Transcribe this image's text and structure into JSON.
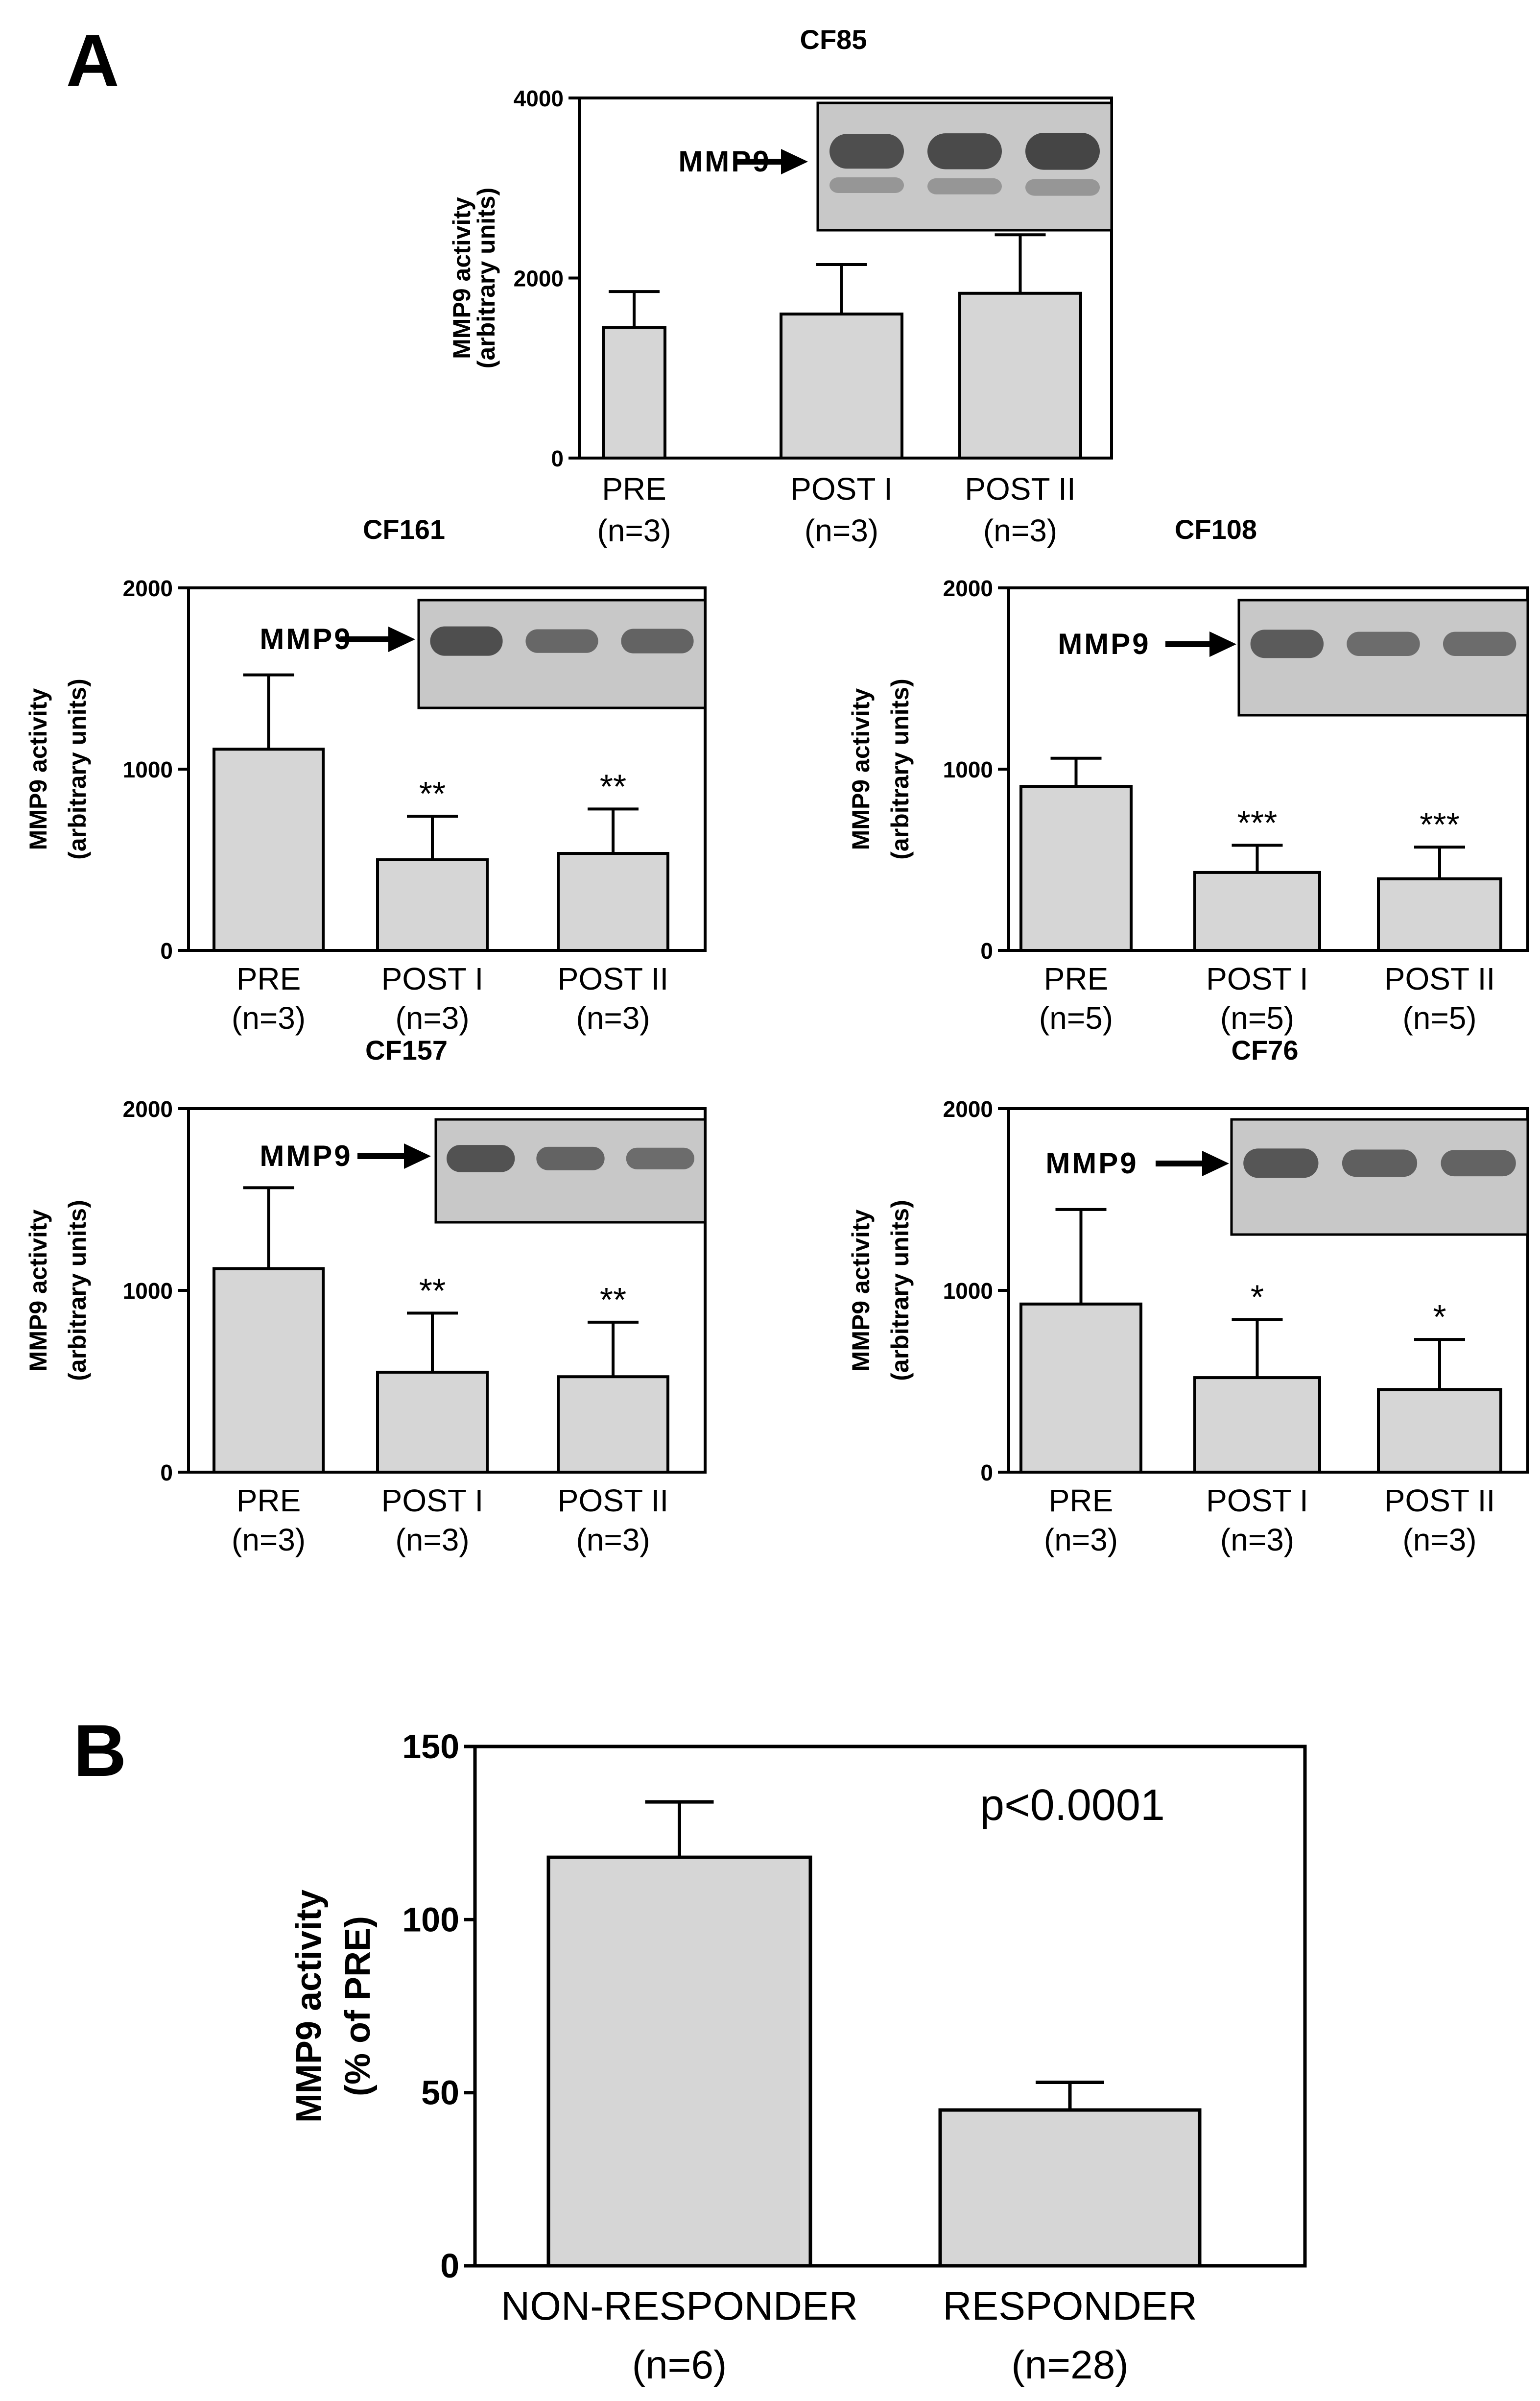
{
  "panels": {
    "a": {
      "letter": "A"
    },
    "b": {
      "letter": "B"
    }
  },
  "colors": {
    "bar_fill": "#d6d6d6",
    "ink": "#000000",
    "gel_background": "#c8c8c8",
    "gel_band": "#3a3a3a"
  },
  "chart_data": [
    {
      "id": "cf85",
      "panel": "A",
      "type": "bar",
      "title": "CF85",
      "ylabel": [
        "MMP9 activity",
        "(arbitrary units)"
      ],
      "ylim": [
        0,
        4000
      ],
      "yticks": [
        0,
        2000,
        4000
      ],
      "categories": [
        "PRE",
        "POST I",
        "POST II"
      ],
      "sample_sizes": [
        "(n=3)",
        "(n=3)",
        "(n=3)"
      ],
      "values": [
        1450,
        1600,
        1830
      ],
      "errors": [
        400,
        550,
        650
      ],
      "significance": [
        "",
        "",
        ""
      ],
      "inset": {
        "label": "MMP9",
        "band_strength": [
          0.85,
          0.9,
          0.95
        ]
      }
    },
    {
      "id": "cf161",
      "panel": "A",
      "type": "bar",
      "title": "CF161",
      "ylabel": [
        "MMP9 activity",
        "(arbitrary units)"
      ],
      "ylim": [
        0,
        2000
      ],
      "yticks": [
        0,
        1000,
        2000
      ],
      "categories": [
        "PRE",
        "POST I",
        "POST II"
      ],
      "sample_sizes": [
        "(n=3)",
        "(n=3)",
        "(n=3)"
      ],
      "values": [
        1110,
        500,
        535
      ],
      "errors": [
        410,
        240,
        245
      ],
      "significance": [
        "",
        "**",
        "**"
      ],
      "inset": {
        "label": "MMP9",
        "band_strength": [
          0.85,
          0.55,
          0.6
        ]
      }
    },
    {
      "id": "cf108",
      "panel": "A",
      "type": "bar",
      "title": "CF108",
      "ylabel": [
        "MMP9 activity",
        "(arbitrary units)"
      ],
      "ylim": [
        0,
        2000
      ],
      "yticks": [
        0,
        1000,
        2000
      ],
      "categories": [
        "PRE",
        "POST I",
        "POST II"
      ],
      "sample_sizes": [
        "(n=5)",
        "(n=5)",
        "(n=5)"
      ],
      "values": [
        905,
        430,
        395
      ],
      "errors": [
        155,
        150,
        175
      ],
      "significance": [
        "",
        "***",
        "***"
      ],
      "inset": {
        "label": "MMP9",
        "band_strength": [
          0.7,
          0.5,
          0.5
        ]
      }
    },
    {
      "id": "cf157",
      "panel": "A",
      "type": "bar",
      "title": "CF157",
      "ylabel": [
        "MMP9 activity",
        "(arbitrary units)"
      ],
      "ylim": [
        0,
        2000
      ],
      "yticks": [
        0,
        1000,
        2000
      ],
      "categories": [
        "PRE",
        "POST I",
        "POST II"
      ],
      "sample_sizes": [
        "(n=3)",
        "(n=3)",
        "(n=3)"
      ],
      "values": [
        1120,
        550,
        525
      ],
      "errors": [
        445,
        325,
        300
      ],
      "significance": [
        "",
        "**",
        "**"
      ],
      "inset": {
        "label": "MMP9",
        "band_strength": [
          0.8,
          0.6,
          0.5
        ]
      }
    },
    {
      "id": "cf76",
      "panel": "A",
      "type": "bar",
      "title": "CF76",
      "ylabel": [
        "MMP9 activity",
        "(arbitrary units)"
      ],
      "ylim": [
        0,
        2000
      ],
      "yticks": [
        0,
        1000,
        2000
      ],
      "categories": [
        "PRE",
        "POST I",
        "POST II"
      ],
      "sample_sizes": [
        "(n=3)",
        "(n=3)",
        "(n=3)"
      ],
      "values": [
        925,
        520,
        455
      ],
      "errors": [
        520,
        320,
        275
      ],
      "significance": [
        "",
        "*",
        "*"
      ],
      "inset": {
        "label": "MMP9",
        "band_strength": [
          0.75,
          0.65,
          0.6
        ]
      }
    },
    {
      "id": "responder",
      "panel": "B",
      "type": "bar",
      "title": "",
      "ylabel": [
        "MMP9 activity",
        "(% of PRE)"
      ],
      "ylim": [
        0,
        150
      ],
      "yticks": [
        0,
        50,
        100,
        150
      ],
      "categories": [
        "NON-RESPONDER",
        "RESPONDER"
      ],
      "sample_sizes": [
        "(n=6)",
        "(n=28)"
      ],
      "values": [
        118,
        45
      ],
      "errors": [
        16,
        8
      ],
      "significance": [
        "",
        ""
      ],
      "annotation": "p<0.0001"
    }
  ]
}
